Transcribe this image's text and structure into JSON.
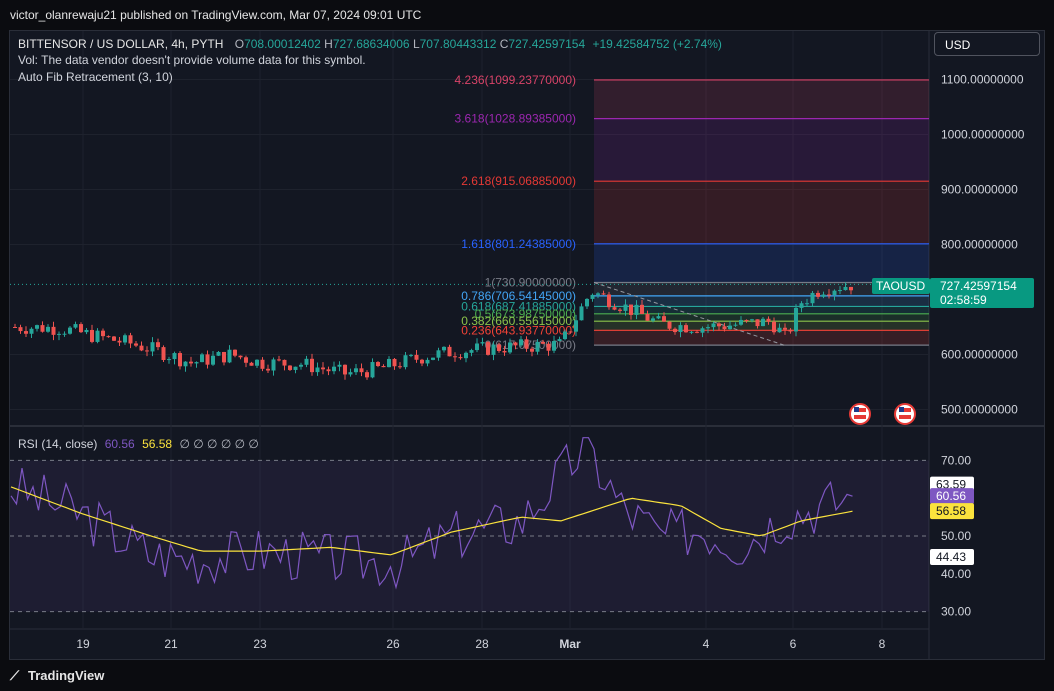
{
  "publish_line": "victor_olanrewaju21 published on TradingView.com, Mar 07, 2024 09:01 UTC",
  "symbol_line": {
    "name": "BITTENSOR / US DOLLAR, 4h, PYTH",
    "o_label": "O",
    "o": "708.00012402",
    "h_label": "H",
    "h": "727.68634006",
    "l_label": "L",
    "l": "707.80443312",
    "c_label": "C",
    "c": "727.42597154",
    "change": "+19.42584752 (+2.74%)"
  },
  "vol_note": "Vol: The data vendor doesn't provide volume data for this symbol.",
  "indicator_fib": "Auto Fib Retracement (3, 10)",
  "currency_button": "USD",
  "fib_levels": [
    {
      "label": "4.236(1099.23770000)",
      "price": 1099.2377,
      "color": "#d84368"
    },
    {
      "label": "3.618(1028.89385000)",
      "price": 1028.89385,
      "color": "#9c27b0"
    },
    {
      "label": "2.618(915.06885000)",
      "price": 915.06885,
      "color": "#e53935"
    },
    {
      "label": "1.618(801.24385000)",
      "price": 801.24385,
      "color": "#2962ff"
    },
    {
      "label": "1(730.90000000)",
      "price": 730.9,
      "color": "#787b86"
    },
    {
      "label": "0.786(706.54145000)",
      "price": 706.54145,
      "color": "#42a5f5"
    },
    {
      "label": "0.618(687.41885000)",
      "price": 687.41885,
      "color": "#26a69a"
    },
    {
      "label": "0.5(673.98750000)",
      "price": 673.9875,
      "color": "#4caf50"
    },
    {
      "label": "0.382(660.55615000)",
      "price": 660.55615,
      "color": "#8bc34a"
    },
    {
      "label": "0.236(643.93770000)",
      "price": 643.9377,
      "color": "#f44336"
    },
    {
      "label": "0(617.07500000)",
      "price": 617.075,
      "color": "#787b86"
    }
  ],
  "price_axis": [
    "1100.00000000",
    "1000.00000000",
    "900.00000000",
    "800.00000000",
    "600.00000000",
    "500.00000000"
  ],
  "price_axis_values": [
    1100,
    1000,
    900,
    800,
    600,
    500
  ],
  "last_price": {
    "symbol": "TAOUSD",
    "price": "727.42597154",
    "countdown": "02:58:59",
    "value": 727.43
  },
  "rsi": {
    "title": "RSI (14, close)",
    "value": "60.56",
    "ma": "56.58",
    "extras": "∅ ∅ ∅ ∅ ∅ ∅",
    "axis": [
      "70.00",
      "50.00",
      "40.00",
      "30.00"
    ],
    "axis_values": [
      70,
      50,
      40,
      30
    ],
    "tags": [
      {
        "text": "63.59",
        "value": 63.59,
        "bg": "#ffffff",
        "fg": "#131722"
      },
      {
        "text": "60.56",
        "value": 60.56,
        "bg": "#7e57c2",
        "fg": "#ffffff"
      },
      {
        "text": "56.58",
        "value": 56.58,
        "bg": "#fbe33d",
        "fg": "#131722"
      },
      {
        "text": "44.43",
        "value": 44.43,
        "bg": "#ffffff",
        "fg": "#131722"
      }
    ]
  },
  "time_axis": [
    "19",
    "21",
    "23",
    "26",
    "28",
    "Mar",
    "4",
    "6",
    "8"
  ],
  "footer_logo": "TradingView",
  "colors": {
    "up": "#26a69a",
    "down": "#ef5350",
    "rsi": "#7e57c2",
    "rsi_ma": "#fbe33d",
    "accent": "#089981"
  }
}
